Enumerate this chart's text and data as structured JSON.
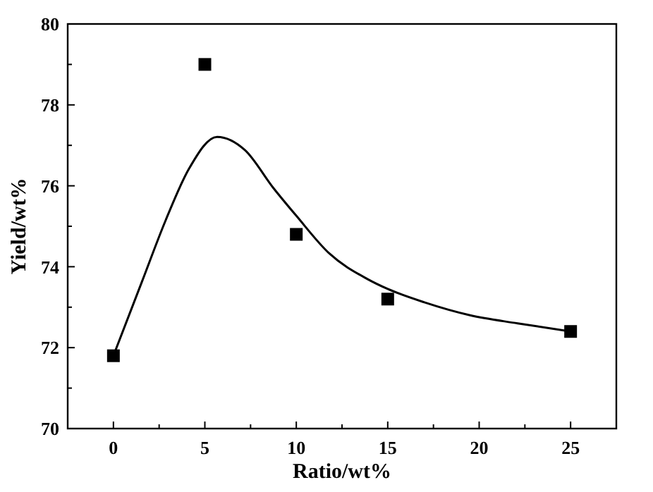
{
  "chart_data": {
    "type": "scatter",
    "xlabel": "Ratio/wt%",
    "ylabel": "Yield/wt%",
    "xlim": [
      -2.5,
      27.5
    ],
    "ylim": [
      70,
      80
    ],
    "xticks": [
      0,
      {
        "value": 2.5,
        "label": null
      },
      5,
      {
        "value": 7.5,
        "label": null
      },
      10,
      {
        "value": 12.5,
        "label": null
      },
      15,
      {
        "value": 17.5,
        "label": null
      },
      20,
      {
        "value": 22.5,
        "label": null
      },
      25
    ],
    "yticks": [
      70,
      {
        "value": 71,
        "label": null
      },
      72,
      {
        "value": 73,
        "label": null
      },
      74,
      {
        "value": 75,
        "label": null
      },
      76,
      {
        "value": 77,
        "label": null
      },
      78,
      {
        "value": 79,
        "label": null
      },
      80
    ],
    "grid": false,
    "series": [
      {
        "color": "#000000",
        "marker": "square",
        "x": [
          0,
          5,
          10,
          15,
          25
        ],
        "values": [
          71.8,
          79,
          74.8,
          73.2,
          72.4
        ]
      },
      {
        "type": "line",
        "color": "#000000",
        "marker": "none",
        "line_style": "solid",
        "x": [
          0,
          1.56,
          2.85,
          4.13,
          5.67,
          7.2,
          8.74,
          10,
          11.8,
          13.87,
          15,
          17,
          19.5,
          22.1,
          25
        ],
        "values": [
          71.8,
          73.63,
          75.14,
          76.42,
          77.21,
          76.88,
          75.95,
          75.26,
          74.33,
          73.7,
          73.45,
          73.12,
          72.8,
          72.6,
          72.4
        ]
      }
    ]
  }
}
